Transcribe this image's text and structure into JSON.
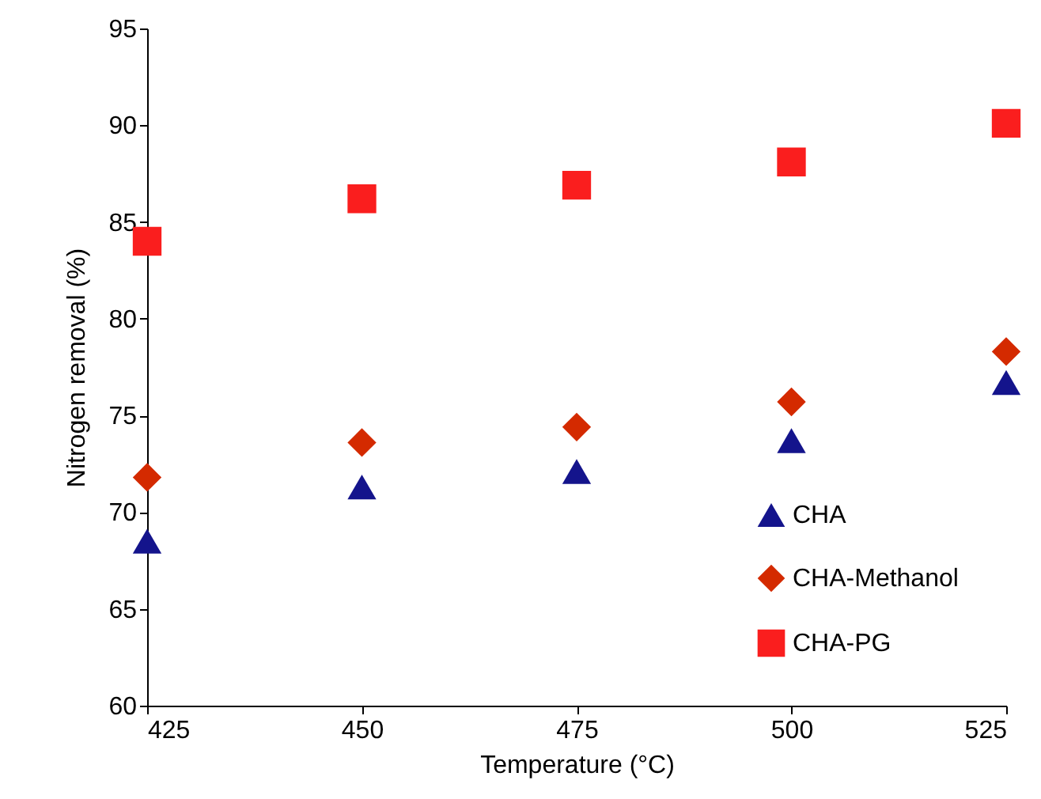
{
  "chart_data": {
    "type": "scatter",
    "xlabel": "Temperature (°C)",
    "ylabel": "Nitrogen removal (%)",
    "x": [
      425,
      450,
      475,
      500,
      525
    ],
    "series": [
      {
        "name": "CHA",
        "color": "#14148c",
        "marker": "triangle",
        "values": [
          68.5,
          71.3,
          72.1,
          73.7,
          76.7
        ]
      },
      {
        "name": "CHA-Methanol",
        "color": "#d42a00",
        "marker": "diamond",
        "values": [
          71.8,
          73.6,
          74.4,
          75.7,
          78.3
        ]
      },
      {
        "name": "CHA-PG",
        "color": "#fa1e1e",
        "marker": "square",
        "values": [
          84.0,
          86.2,
          86.9,
          88.1,
          90.1
        ]
      }
    ],
    "xlim": [
      425,
      525
    ],
    "xticks": [
      425,
      450,
      475,
      500,
      525
    ],
    "ylim": [
      60,
      95
    ],
    "yticks": [
      60,
      65,
      70,
      75,
      80,
      85,
      90,
      95
    ],
    "grid": false,
    "legend": "bottom right"
  }
}
